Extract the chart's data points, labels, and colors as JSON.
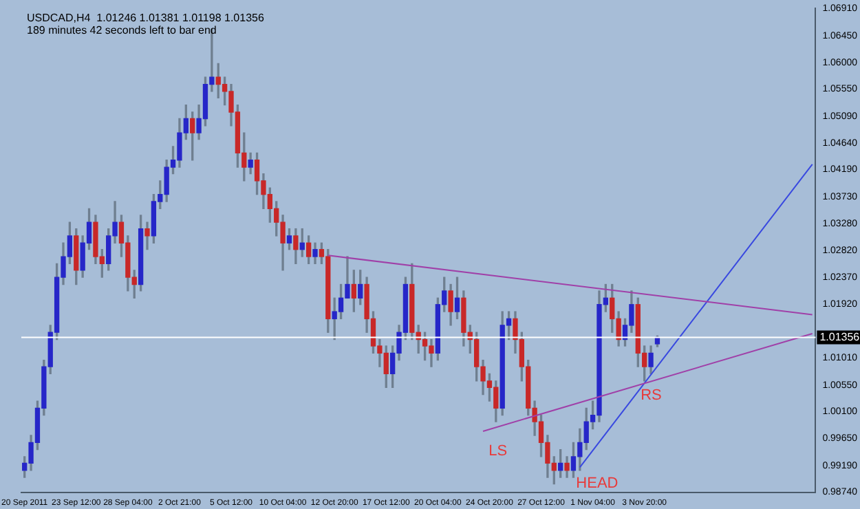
{
  "chart_data": {
    "type": "candlestick",
    "title": "USDCAD,H4  1.01246 1.01381 1.01198 1.01356",
    "subtitle": "189 minutes 42 seconds left to bar end",
    "categories": [
      "20 Sep 2011",
      null,
      null,
      null,
      null,
      null,
      null,
      null,
      "23 Sep 12:00",
      null,
      null,
      null,
      null,
      null,
      null,
      null,
      "28 Sep 04:00",
      null,
      null,
      null,
      null,
      null,
      null,
      null,
      "2 Oct 21:00",
      null,
      null,
      null,
      null,
      null,
      null,
      null,
      "5 Oct 12:00",
      null,
      null,
      null,
      null,
      null,
      null,
      null,
      "10 Oct 04:00",
      null,
      null,
      null,
      null,
      null,
      null,
      null,
      "12 Oct 20:00",
      null,
      null,
      null,
      null,
      null,
      null,
      null,
      "17 Oct 12:00",
      null,
      null,
      null,
      null,
      null,
      null,
      null,
      "20 Oct 04:00",
      null,
      null,
      null,
      null,
      null,
      null,
      null,
      "24 Oct 20:00",
      null,
      null,
      null,
      null,
      null,
      null,
      null,
      "27 Oct 12:00",
      null,
      null,
      null,
      null,
      null,
      null,
      null,
      "1 Nov 04:00",
      null,
      null,
      null,
      null,
      null,
      null,
      null,
      "3 Nov 20:00",
      null,
      null,
      null,
      null,
      null,
      null,
      null,
      null,
      null,
      null,
      null,
      null,
      null,
      null,
      null,
      null,
      null,
      null,
      null,
      null,
      null,
      null,
      null,
      null,
      null,
      null
    ],
    "ohlc": [
      [
        0.9911,
        0.9934,
        0.9899,
        0.9923
      ],
      [
        0.9923,
        0.997,
        0.9911,
        0.9958
      ],
      [
        0.9958,
        1.0028,
        0.9946,
        1.0016
      ],
      [
        1.0016,
        1.0097,
        1.0004,
        1.0086
      ],
      [
        1.0086,
        1.0156,
        1.0074,
        1.0144
      ],
      [
        1.0144,
        1.026,
        1.0132,
        1.0237
      ],
      [
        1.0237,
        1.0295,
        1.0225,
        1.0272
      ],
      [
        1.0272,
        1.033,
        1.026,
        1.0307
      ],
      [
        1.0307,
        1.0319,
        1.0225,
        1.0249
      ],
      [
        1.0249,
        1.0307,
        1.0237,
        1.0295
      ],
      [
        1.0295,
        1.0353,
        1.0284,
        1.033
      ],
      [
        1.033,
        1.0342,
        1.026,
        1.0272
      ],
      [
        1.0272,
        1.0284,
        1.0237,
        1.026
      ],
      [
        1.026,
        1.0319,
        1.0249,
        1.0307
      ],
      [
        1.0307,
        1.0365,
        1.0295,
        1.033
      ],
      [
        1.033,
        1.0342,
        1.0272,
        1.0295
      ],
      [
        1.0295,
        1.0307,
        1.0214,
        1.0237
      ],
      [
        1.0237,
        1.0249,
        1.0202,
        1.0225
      ],
      [
        1.0225,
        1.0342,
        1.0214,
        1.0319
      ],
      [
        1.0319,
        1.033,
        1.0284,
        1.0307
      ],
      [
        1.0307,
        1.0377,
        1.0295,
        1.0365
      ],
      [
        1.0365,
        1.04,
        1.0353,
        1.0377
      ],
      [
        1.0377,
        1.0435,
        1.0365,
        1.0423
      ],
      [
        1.0423,
        1.0458,
        1.0412,
        1.0435
      ],
      [
        1.0435,
        1.0505,
        1.0423,
        1.0481
      ],
      [
        1.0481,
        1.0528,
        1.047,
        1.0505
      ],
      [
        1.0505,
        1.0516,
        1.0435,
        1.0481
      ],
      [
        1.0481,
        1.0528,
        1.047,
        1.0505
      ],
      [
        1.0505,
        1.0575,
        1.0493,
        1.0563
      ],
      [
        1.0563,
        1.0656,
        1.0551,
        1.0575
      ],
      [
        1.0575,
        1.0598,
        1.054,
        1.0563
      ],
      [
        1.0563,
        1.0575,
        1.0528,
        1.0551
      ],
      [
        1.0551,
        1.0563,
        1.0493,
        1.0516
      ],
      [
        1.0516,
        1.0528,
        1.0423,
        1.0447
      ],
      [
        1.0447,
        1.0481,
        1.04,
        1.0423
      ],
      [
        1.0423,
        1.0447,
        1.0412,
        1.0435
      ],
      [
        1.0435,
        1.0447,
        1.0377,
        1.04
      ],
      [
        1.04,
        1.0412,
        1.0353,
        1.0377
      ],
      [
        1.0377,
        1.0388,
        1.033,
        1.0353
      ],
      [
        1.0353,
        1.0365,
        1.0307,
        1.033
      ],
      [
        1.033,
        1.0342,
        1.0249,
        1.0295
      ],
      [
        1.0295,
        1.0319,
        1.0284,
        1.0307
      ],
      [
        1.0307,
        1.0319,
        1.026,
        1.0284
      ],
      [
        1.0284,
        1.0319,
        1.0272,
        1.0295
      ],
      [
        1.0295,
        1.0307,
        1.026,
        1.0272
      ],
      [
        1.0272,
        1.0295,
        1.026,
        1.0284
      ],
      [
        1.0284,
        1.0295,
        1.026,
        1.0272
      ],
      [
        1.0272,
        1.0284,
        1.0144,
        1.0167
      ],
      [
        1.0167,
        1.0202,
        1.0132,
        1.0179
      ],
      [
        1.0179,
        1.0225,
        1.0167,
        1.0202
      ],
      [
        1.0202,
        1.0272,
        1.0202,
        1.0225
      ],
      [
        1.0225,
        1.0249,
        1.0179,
        1.0202
      ],
      [
        1.0202,
        1.0249,
        1.0191,
        1.0225
      ],
      [
        1.0225,
        1.0237,
        1.0144,
        1.0167
      ],
      [
        1.0167,
        1.0179,
        1.0109,
        1.0121
      ],
      [
        1.0121,
        1.0132,
        1.0086,
        1.0109
      ],
      [
        1.0109,
        1.0121,
        1.0051,
        1.0074
      ],
      [
        1.0074,
        1.0121,
        1.0051,
        1.0109
      ],
      [
        1.0109,
        1.0156,
        1.0097,
        1.0144
      ],
      [
        1.0144,
        1.0237,
        1.0132,
        1.0225
      ],
      [
        1.0225,
        1.026,
        1.0132,
        1.0144
      ],
      [
        1.0144,
        1.0156,
        1.0109,
        1.0132
      ],
      [
        1.0132,
        1.0144,
        1.0097,
        1.0121
      ],
      [
        1.0121,
        1.0132,
        1.0086,
        1.0109
      ],
      [
        1.0109,
        1.0202,
        1.0097,
        1.0191
      ],
      [
        1.0191,
        1.0237,
        1.0179,
        1.0214
      ],
      [
        1.0214,
        1.0225,
        1.0156,
        1.0179
      ],
      [
        1.0179,
        1.0237,
        1.0167,
        1.0202
      ],
      [
        1.0202,
        1.0214,
        1.0121,
        1.0144
      ],
      [
        1.0144,
        1.0156,
        1.0109,
        1.0132
      ],
      [
        1.0132,
        1.0144,
        1.0062,
        1.0086
      ],
      [
        1.0086,
        1.0097,
        1.0039,
        1.0062
      ],
      [
        1.0062,
        1.0074,
        1.0028,
        1.0051
      ],
      [
        1.0051,
        1.0062,
        0.9993,
        1.0016
      ],
      [
        1.0016,
        1.0179,
        1.0004,
        1.0156
      ],
      [
        1.0156,
        1.0179,
        1.0132,
        1.0167
      ],
      [
        1.0167,
        1.0179,
        1.0109,
        1.0132
      ],
      [
        1.0132,
        1.0144,
        1.0062,
        1.0086
      ],
      [
        1.0086,
        1.0097,
        1.0004,
        1.0016
      ],
      [
        1.0016,
        1.0028,
        0.997,
        0.9993
      ],
      [
        0.9993,
        1.0004,
        0.9934,
        0.9958
      ],
      [
        0.9958,
        0.997,
        0.9899,
        0.9923
      ],
      [
        0.9923,
        0.9934,
        0.9888,
        0.9911
      ],
      [
        0.9911,
        0.9946,
        0.9899,
        0.9923
      ],
      [
        0.9923,
        0.9934,
        0.9899,
        0.9911
      ],
      [
        0.9911,
        0.9958,
        0.9899,
        0.9934
      ],
      [
        0.9934,
        0.9981,
        0.9911,
        0.9958
      ],
      [
        0.9958,
        1.0016,
        0.9946,
        0.9993
      ],
      [
        0.9993,
        1.0028,
        0.9981,
        1.0004
      ],
      [
        1.0004,
        1.0214,
        0.9993,
        1.0191
      ],
      [
        1.0191,
        1.0225,
        1.0179,
        1.0202
      ],
      [
        1.0202,
        1.0225,
        1.0144,
        1.0167
      ],
      [
        1.0167,
        1.0179,
        1.0121,
        1.0132
      ],
      [
        1.0132,
        1.0167,
        1.0121,
        1.0156
      ],
      [
        1.0156,
        1.0214,
        1.0144,
        1.0191
      ],
      [
        1.0191,
        1.0202,
        1.0086,
        1.0109
      ],
      [
        1.0109,
        1.0121,
        1.0062,
        1.0086
      ],
      [
        1.0086,
        1.0121,
        1.0074,
        1.0109
      ],
      [
        1.01246,
        1.01381,
        1.01198,
        1.01356
      ],
      null,
      null,
      null,
      null,
      null,
      null,
      null,
      null,
      null,
      null,
      null,
      null,
      null,
      null,
      null,
      null,
      null,
      null,
      null,
      null,
      null,
      null,
      null,
      null
    ],
    "series": [
      {
        "type": "line",
        "color": "#a040a8",
        "values": [
          null,
          null,
          null,
          null,
          null,
          null,
          null,
          null,
          null,
          null,
          null,
          null,
          null,
          null,
          null,
          null,
          null,
          null,
          null,
          null,
          null,
          null,
          null,
          null,
          null,
          null,
          null,
          null,
          null,
          null,
          null,
          null,
          null,
          null,
          null,
          null,
          null,
          null,
          null,
          null,
          null,
          null,
          null,
          null,
          null,
          null,
          null,
          1.0274,
          null,
          null,
          null,
          null,
          null,
          null,
          null,
          null,
          null,
          null,
          null,
          null,
          null,
          null,
          null,
          null,
          null,
          null,
          null,
          null,
          null,
          null,
          null,
          null,
          null,
          null,
          null,
          null,
          null,
          null,
          null,
          null,
          null,
          null,
          null,
          null,
          null,
          null,
          null,
          null,
          null,
          null,
          null,
          null,
          null,
          null,
          null,
          null,
          null,
          null,
          null,
          null,
          null,
          null,
          null,
          null,
          null,
          null,
          null,
          null,
          null,
          null,
          null,
          null,
          null,
          null,
          null,
          null,
          null,
          null,
          null,
          null,
          null,
          null,
          1.0174
        ]
      },
      {
        "type": "line",
        "color": "#a040a8",
        "values": [
          null,
          null,
          null,
          null,
          null,
          null,
          null,
          null,
          null,
          null,
          null,
          null,
          null,
          null,
          null,
          null,
          null,
          null,
          null,
          null,
          null,
          null,
          null,
          null,
          null,
          null,
          null,
          null,
          null,
          null,
          null,
          null,
          null,
          null,
          null,
          null,
          null,
          null,
          null,
          null,
          null,
          null,
          null,
          null,
          null,
          null,
          null,
          null,
          null,
          null,
          null,
          null,
          null,
          null,
          null,
          null,
          null,
          null,
          null,
          null,
          null,
          null,
          null,
          null,
          null,
          null,
          null,
          null,
          null,
          null,
          null,
          0.9977,
          null,
          null,
          null,
          null,
          null,
          null,
          null,
          null,
          null,
          null,
          null,
          null,
          null,
          null,
          null,
          null,
          null,
          null,
          null,
          null,
          null,
          null,
          null,
          null,
          null,
          null,
          null,
          null,
          null,
          null,
          null,
          null,
          null,
          null,
          null,
          null,
          null,
          null,
          null,
          null,
          null,
          null,
          null,
          null,
          null,
          null,
          null,
          null,
          null,
          null,
          1.0142
        ]
      },
      {
        "type": "line",
        "color": "#3848e0",
        "values": [
          null,
          null,
          null,
          null,
          null,
          null,
          null,
          null,
          null,
          null,
          null,
          null,
          null,
          null,
          null,
          null,
          null,
          null,
          null,
          null,
          null,
          null,
          null,
          null,
          null,
          null,
          null,
          null,
          null,
          null,
          null,
          null,
          null,
          null,
          null,
          null,
          null,
          null,
          null,
          null,
          null,
          null,
          null,
          null,
          null,
          null,
          null,
          null,
          null,
          null,
          null,
          null,
          null,
          null,
          null,
          null,
          null,
          null,
          null,
          null,
          null,
          null,
          null,
          null,
          null,
          null,
          null,
          null,
          null,
          null,
          null,
          null,
          null,
          null,
          null,
          null,
          null,
          null,
          null,
          null,
          null,
          null,
          null,
          null,
          null,
          null,
          0.9916,
          null,
          null,
          null,
          null,
          null,
          null,
          null,
          null,
          null,
          null,
          null,
          null,
          null,
          null,
          null,
          null,
          null,
          null,
          null,
          null,
          null,
          null,
          null,
          null,
          null,
          null,
          null,
          null,
          null,
          null,
          null,
          null,
          null,
          null,
          null,
          1.0428
        ]
      }
    ],
    "ylim": [
      0.9874,
      1.0691
    ],
    "yticks": [
      {
        "value": 1.0691,
        "label": "1.06910"
      },
      {
        "value": 1.0645,
        "label": "1.06450"
      },
      {
        "value": 1.06,
        "label": "1.06000"
      },
      {
        "value": 1.0555,
        "label": "1.05550"
      },
      {
        "value": 1.0509,
        "label": "1.05090"
      },
      {
        "value": 1.0464,
        "label": "1.04640"
      },
      {
        "value": 1.0419,
        "label": "1.04190"
      },
      {
        "value": 1.0373,
        "label": "1.03730"
      },
      {
        "value": 1.0328,
        "label": "1.03280"
      },
      {
        "value": 1.0282,
        "label": "1.02820"
      },
      {
        "value": 1.0237,
        "label": "1.02370"
      },
      {
        "value": 1.0192,
        "label": "1.01920"
      },
      {
        "value": 1.0101,
        "label": "1.01010"
      },
      {
        "value": 1.0055,
        "label": "1.00550"
      },
      {
        "value": 1.001,
        "label": "1.00100"
      },
      {
        "value": 0.9965,
        "label": "0.99650"
      },
      {
        "value": 0.9919,
        "label": "0.99190"
      },
      {
        "value": 0.9874,
        "label": "0.98740"
      }
    ],
    "ref_lines": [
      {
        "axis": "y",
        "value": 1.01356,
        "label": "1.01356",
        "color": "#ffffff"
      }
    ],
    "annotations": [
      "LS",
      "HEAD",
      "RS"
    ]
  }
}
